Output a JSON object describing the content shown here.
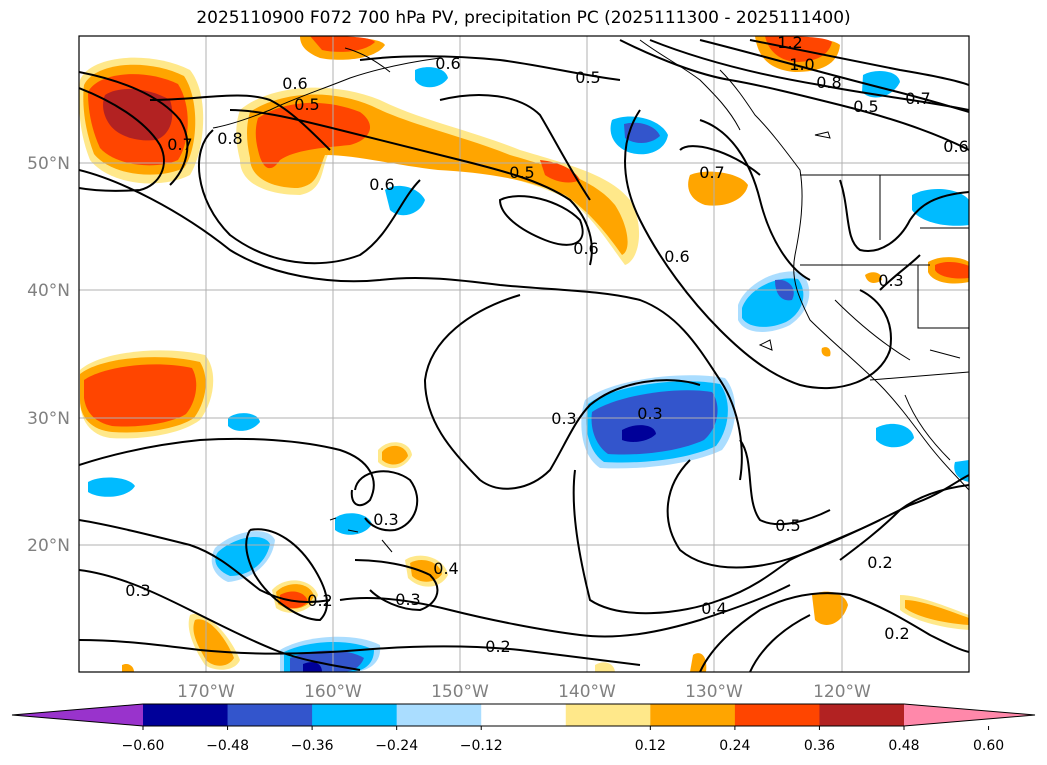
{
  "title": "2025110900 F072 700 hPa PV, precipitation PC (2025111300 - 2025111400)",
  "map": {
    "lat_labels": [
      "50°N",
      "40°N",
      "30°N",
      "20°N"
    ],
    "lon_labels": [
      "170°W",
      "160°W",
      "150°W",
      "140°W",
      "130°W",
      "120°W"
    ],
    "contour_labels": [
      "1.2",
      "1.0",
      "0.8",
      "0.7",
      "0.6",
      "0.5",
      "0.4",
      "0.3",
      "0.2"
    ]
  },
  "colorbar": {
    "ticks": [
      "−0.60",
      "−0.48",
      "−0.36",
      "−0.24",
      "−0.12",
      "0.12",
      "0.24",
      "0.36",
      "0.48",
      "0.60"
    ],
    "colors": [
      "#9933cc",
      "#000099",
      "#3355cc",
      "#00bbff",
      "#aaddff",
      "#ffffff",
      "#ffe88a",
      "#ffa500",
      "#ff4500",
      "#b22222",
      "#ff88aa"
    ]
  },
  "colors": {
    "neg_strong": "#000099",
    "neg_mid": "#3355cc",
    "neg_light": "#00bbff",
    "neg_pale": "#aaddff",
    "pos_pale": "#ffe88a",
    "pos_light": "#ffa500",
    "pos_mid": "#ff4500",
    "pos_strong": "#b22222",
    "axis_label": "#808080"
  }
}
